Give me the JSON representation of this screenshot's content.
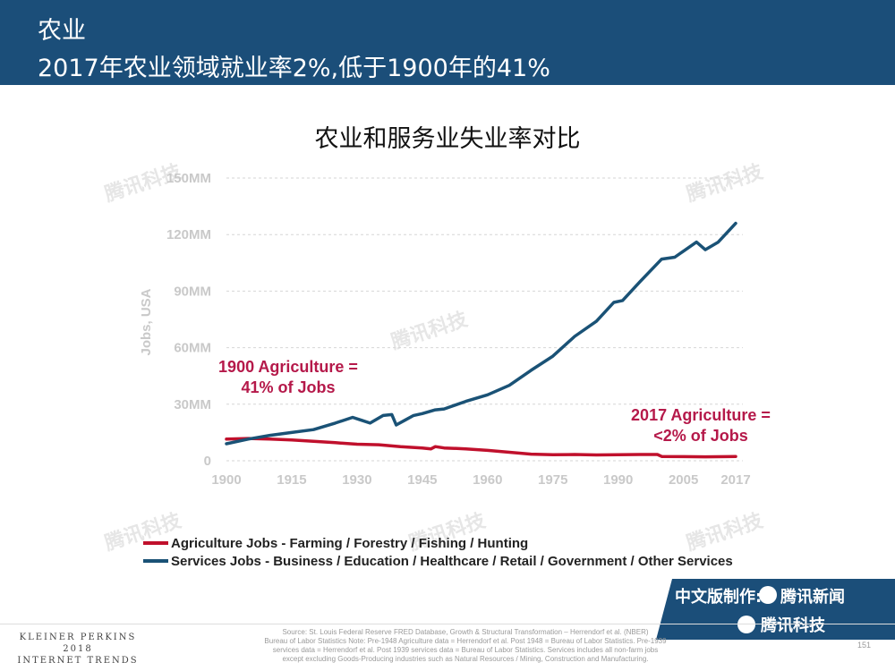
{
  "header": {
    "line1": "农业",
    "line2": "2017年农业领域就业率2%,低于1900年的41%"
  },
  "watermark": "腾讯科技",
  "chart_data": {
    "type": "line",
    "title": "农业和服务业失业率对比",
    "xlabel": "",
    "ylabel": "Jobs, USA",
    "x_ticks": [
      1900,
      1915,
      1930,
      1945,
      1960,
      1975,
      1990,
      2005,
      2017
    ],
    "y_ticks": [
      "0",
      "30MM",
      "60MM",
      "90MM",
      "120MM",
      "150MM"
    ],
    "ylim": [
      0,
      150
    ],
    "xlim": [
      1900,
      2017
    ],
    "grid": "horizontal dashed",
    "legend_position": "bottom",
    "colors": {
      "agriculture": "#c0102c",
      "services": "#1a5276"
    },
    "series": [
      {
        "name": "Agriculture Jobs - Farming / Forestry / Fishing / Hunting",
        "x": [
          1900,
          1905,
          1910,
          1915,
          1920,
          1925,
          1930,
          1935,
          1940,
          1945,
          1947,
          1948,
          1950,
          1955,
          1960,
          1965,
          1970,
          1975,
          1980,
          1985,
          1990,
          1995,
          1999,
          2000,
          2005,
          2010,
          2015,
          2017
        ],
        "values": [
          11.5,
          11.8,
          11.5,
          11.0,
          10.3,
          9.6,
          8.8,
          8.5,
          7.5,
          6.8,
          6.3,
          7.5,
          6.8,
          6.3,
          5.5,
          4.5,
          3.5,
          3.2,
          3.3,
          3.1,
          3.2,
          3.3,
          3.3,
          2.3,
          2.2,
          2.1,
          2.2,
          2.3
        ]
      },
      {
        "name": "Services Jobs - Business / Education / Healthcare / Retail / Government / Other Services",
        "x": [
          1900,
          1905,
          1910,
          1915,
          1920,
          1925,
          1929,
          1931,
          1933,
          1936,
          1938,
          1939,
          1941,
          1943,
          1945,
          1948,
          1950,
          1955,
          1960,
          1965,
          1970,
          1975,
          1980,
          1985,
          1989,
          1991,
          1995,
          2000,
          2003,
          2008,
          2010,
          2013,
          2017
        ],
        "values": [
          9.0,
          11.5,
          13.5,
          15.0,
          16.5,
          20.0,
          23.0,
          21.5,
          20.0,
          24.0,
          24.5,
          19.0,
          21.5,
          24.0,
          25.0,
          27.0,
          27.5,
          31.5,
          35.0,
          40.0,
          48.0,
          55.5,
          66.0,
          74.0,
          84.0,
          85.0,
          95.0,
          107.0,
          108.0,
          116.0,
          112.0,
          116.0,
          126.0
        ]
      }
    ],
    "annotations": [
      {
        "lines": [
          "1900 Agriculture =",
          "41% of Jobs"
        ]
      },
      {
        "lines": [
          "2017 Agriculture =",
          "<2% of Jobs"
        ]
      }
    ]
  },
  "badge": {
    "line1_prefix": "中文版制作:",
    "line1_brand": "腾讯新闻",
    "line2_brand": "腾讯科技"
  },
  "footer": {
    "brand_lines": [
      "KLEINER PERKINS",
      "2018",
      "INTERNET TRENDS"
    ],
    "source_lines": [
      "Source: St. Louis Federal Reserve FRED Database, Growth & Structural Transformation – Herrendorf et al. (NBER)",
      "Bureau of Labor Statistics Note: Pre-1948 Agriculture data = Herrendorf et al. Post 1948 = Bureau of Labor Statistics. Pre-1939",
      "services data = Herrendorf et al. Post 1939 services data = Bureau of Labor Statistics. Services includes all non-farm jobs",
      "except excluding Goods-Producing industries such as Natural Resources / Mining, Construction and Manufacturing."
    ],
    "page_number": "151"
  }
}
